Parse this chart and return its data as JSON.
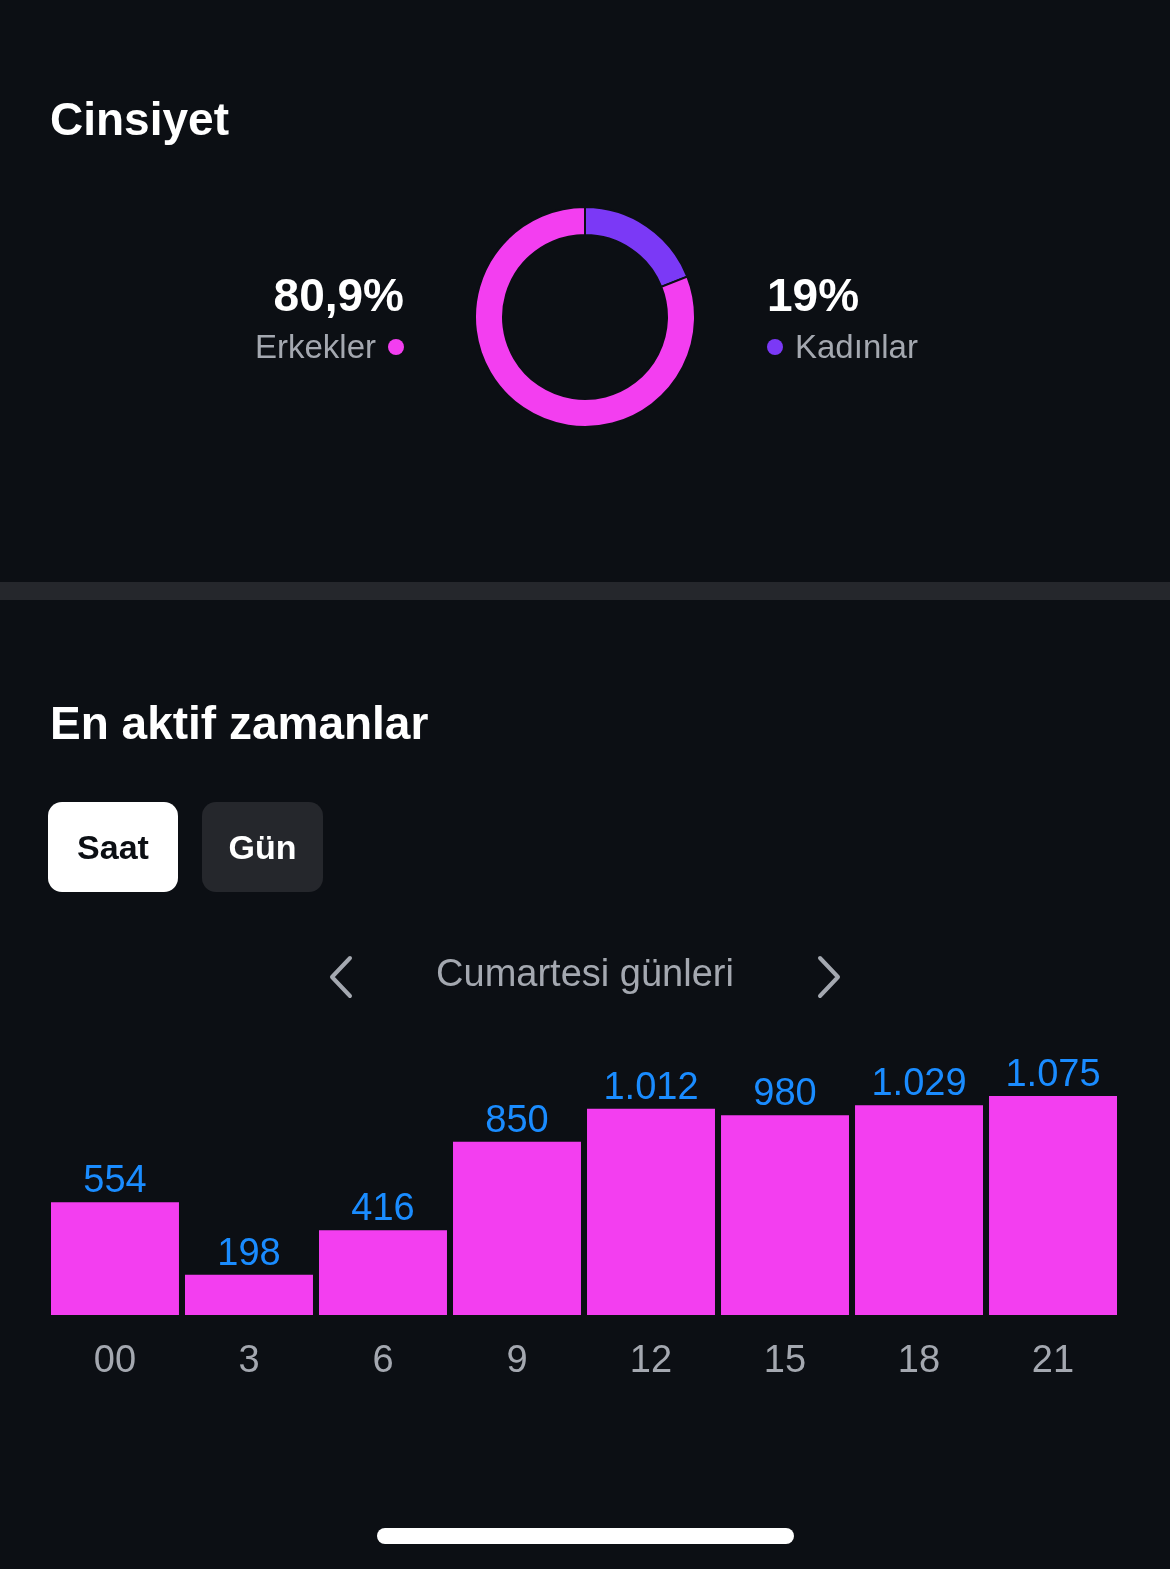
{
  "chart_data": [
    {
      "type": "donut",
      "title": "Cinsiyet",
      "categories": [
        "Kadınlar",
        "Erkekler"
      ],
      "values": [
        19,
        80.9
      ],
      "colors": [
        "#7b39f6",
        "#f33ef0"
      ],
      "value_labels": [
        "19%",
        "80,9%"
      ]
    },
    {
      "type": "bar",
      "title": "En aktif zamanlar",
      "subtitle": "Cumartesi günleri",
      "annotations": [
        "Saat",
        "Gün"
      ],
      "categories": [
        "00",
        "3",
        "6",
        "9",
        "12",
        "15",
        "18",
        "21"
      ],
      "values": [
        554,
        198,
        416,
        850,
        1012,
        980,
        1029,
        1075
      ],
      "color": "#f33ef0",
      "value_labels": [
        "554",
        "198",
        "416",
        "850",
        "1.012",
        "980",
        "1.029",
        "1.075"
      ],
      "tick_labels": "x"
    }
  ]
}
